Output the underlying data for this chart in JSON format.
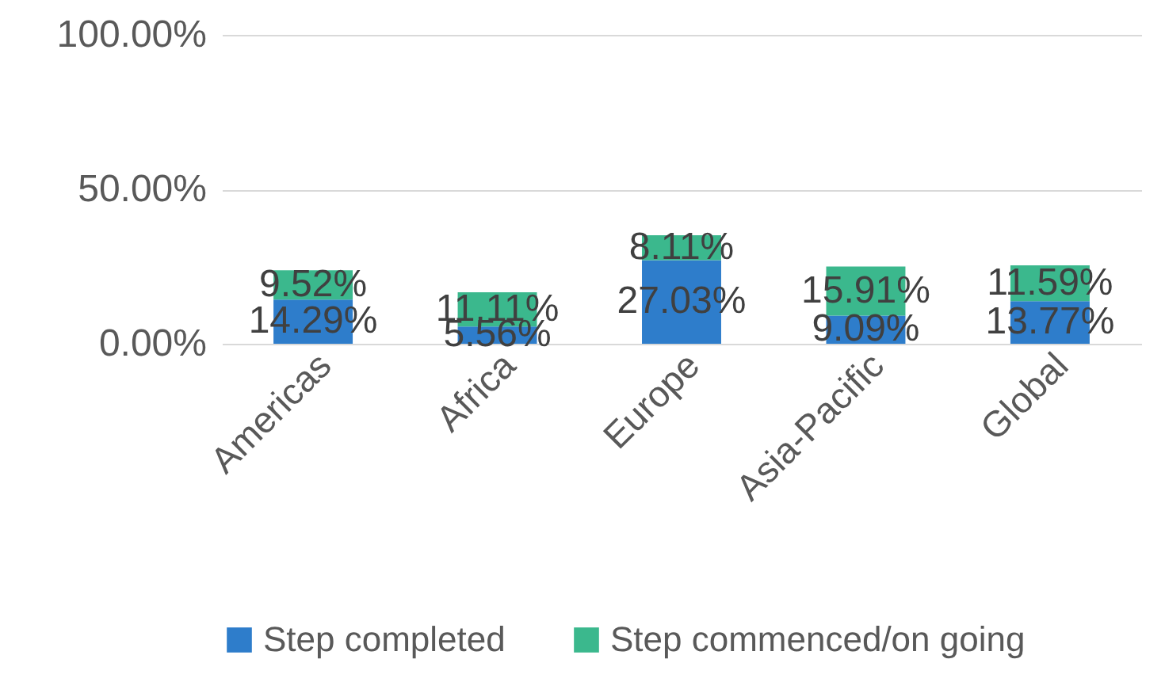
{
  "chart_data": {
    "type": "bar",
    "stacked": true,
    "categories": [
      "Americas",
      "Africa",
      "Europe",
      "Asia-Pacific",
      "Global"
    ],
    "series": [
      {
        "name": "Step completed",
        "color": "#2e7dcb",
        "values": [
          14.29,
          5.56,
          27.03,
          9.09,
          13.77
        ],
        "value_labels": [
          "14.29%",
          "5.56%",
          "27.03%",
          "9.09%",
          "13.77%"
        ]
      },
      {
        "name": "Step commenced/on going",
        "color": "#3bb88d",
        "values": [
          9.52,
          11.11,
          8.11,
          15.91,
          11.59
        ],
        "value_labels": [
          "9.52%",
          "11.11%",
          "8.11%",
          "15.91%",
          "11.59%"
        ]
      }
    ],
    "ylim": [
      0,
      100
    ],
    "yticks": [
      {
        "value": 0,
        "label": "0.00%"
      },
      {
        "value": 50,
        "label": "50.00%"
      },
      {
        "value": 100,
        "label": "100.00%"
      }
    ],
    "grid": "y",
    "legend": "bottom"
  }
}
